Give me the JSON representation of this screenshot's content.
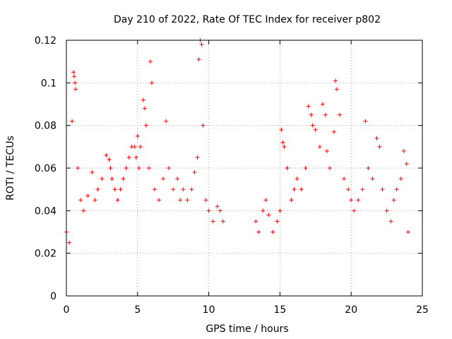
{
  "chart_data": {
    "type": "scatter",
    "title": "Day 210 of 2022, Rate Of TEC Index for receiver p802",
    "xlabel": "GPS time / hours",
    "ylabel": "ROTI / TECUs",
    "xlim": [
      0,
      25
    ],
    "ylim": [
      0,
      0.12
    ],
    "x_ticks": [
      0,
      5,
      10,
      15,
      20,
      25
    ],
    "x_tick_labels": [
      "0",
      "5",
      "10",
      "15",
      "20",
      "25"
    ],
    "y_ticks": [
      0,
      0.02,
      0.04,
      0.06,
      0.08,
      0.1,
      0.12
    ],
    "y_tick_labels": [
      "0",
      "0.02",
      "0.04",
      "0.06",
      "0.08",
      "0.1",
      "0.12"
    ],
    "grid": true,
    "marker": "+",
    "series_color": "#ff0000",
    "data_gaps_hours": [
      [
        11.0,
        13.3
      ]
    ],
    "series": [
      {
        "x": [
          0.0,
          0.2,
          0.4,
          0.5,
          0.55,
          0.6,
          0.65,
          0.8,
          1.0,
          1.2,
          1.5,
          1.8,
          2.0,
          2.2,
          2.5,
          2.8,
          3.0,
          3.1,
          3.2,
          3.4,
          3.6,
          3.8,
          4.0,
          4.2,
          4.4,
          4.6,
          4.8,
          4.9,
          5.0,
          5.1,
          5.2,
          5.4,
          5.5,
          5.6,
          5.8,
          5.9,
          6.0,
          6.2,
          6.5,
          6.8,
          7.0,
          7.2,
          7.5,
          7.8,
          8.0,
          8.2,
          8.5,
          8.8,
          9.0,
          9.2,
          9.3,
          9.4,
          9.5,
          9.6,
          9.8,
          10.0,
          10.3,
          10.6,
          10.8,
          11.0,
          13.3,
          13.5,
          13.8,
          14.0,
          14.2,
          14.5,
          14.8,
          15.0,
          15.1,
          15.2,
          15.3,
          15.5,
          15.8,
          16.0,
          16.2,
          16.5,
          16.8,
          17.0,
          17.2,
          17.3,
          17.5,
          17.8,
          18.0,
          18.2,
          18.3,
          18.5,
          18.8,
          18.9,
          19.0,
          19.2,
          19.5,
          19.8,
          20.0,
          20.2,
          20.5,
          20.8,
          21.0,
          21.2,
          21.5,
          21.8,
          22.0,
          22.2,
          22.5,
          22.8,
          23.0,
          23.2,
          23.5,
          23.7,
          23.9,
          24.0
        ],
        "y": [
          0.03,
          0.025,
          0.082,
          0.105,
          0.103,
          0.1,
          0.097,
          0.06,
          0.045,
          0.04,
          0.047,
          0.058,
          0.045,
          0.05,
          0.055,
          0.066,
          0.064,
          0.06,
          0.055,
          0.05,
          0.045,
          0.05,
          0.055,
          0.06,
          0.065,
          0.07,
          0.07,
          0.065,
          0.075,
          0.06,
          0.07,
          0.092,
          0.088,
          0.08,
          0.06,
          0.11,
          0.1,
          0.05,
          0.045,
          0.055,
          0.082,
          0.06,
          0.05,
          0.055,
          0.045,
          0.05,
          0.045,
          0.05,
          0.058,
          0.065,
          0.111,
          0.12,
          0.118,
          0.08,
          0.045,
          0.04,
          0.035,
          0.042,
          0.04,
          0.035,
          0.035,
          0.03,
          0.04,
          0.045,
          0.038,
          0.03,
          0.035,
          0.04,
          0.078,
          0.072,
          0.07,
          0.06,
          0.045,
          0.05,
          0.055,
          0.05,
          0.06,
          0.089,
          0.085,
          0.08,
          0.078,
          0.07,
          0.09,
          0.085,
          0.068,
          0.06,
          0.077,
          0.101,
          0.097,
          0.085,
          0.055,
          0.05,
          0.045,
          0.04,
          0.045,
          0.05,
          0.082,
          0.06,
          0.055,
          0.074,
          0.07,
          0.05,
          0.04,
          0.035,
          0.045,
          0.05,
          0.055,
          0.068,
          0.062,
          0.03
        ]
      }
    ]
  }
}
